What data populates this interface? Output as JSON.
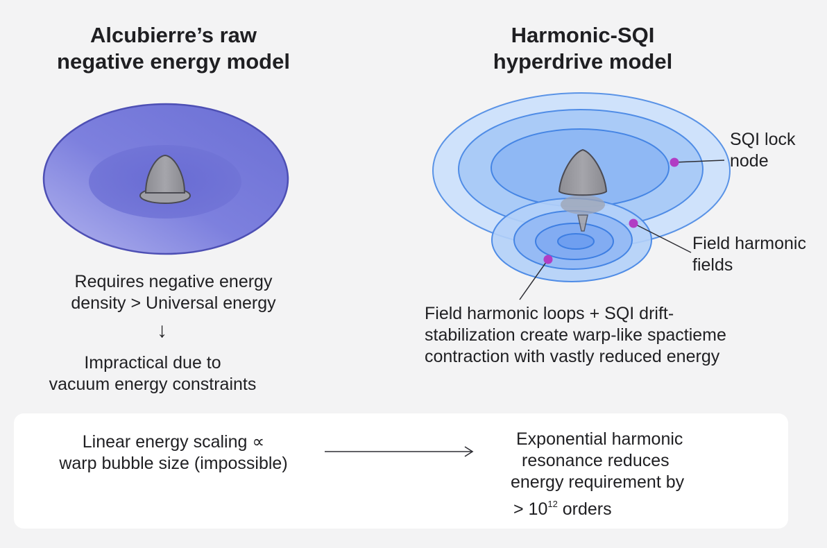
{
  "left": {
    "title_line1": "Alcubierre’s raw",
    "title_line2": "negative energy model",
    "desc_line1": "Requires negative energy",
    "desc_line2": "density > Universal energy",
    "arrow": "↓",
    "result_line1": "Impractical due to",
    "result_line2": "vacuum energy constraints"
  },
  "right": {
    "title_line1": "Harmonic-SQI",
    "title_line2": "hyperdrive model",
    "label_sqi_line1": "SQI lock",
    "label_sqi_line2": "node",
    "label_field_line1": "Field harmonic",
    "label_field_line2": "fields",
    "desc_line1": "Field harmonic loops + SQI drift-",
    "desc_line2": "stabilization create warp-like spactieme",
    "desc_line3": "contraction with vastly reduced energy"
  },
  "comparison": {
    "left_line1": "Linear energy scaling ∝",
    "left_line2": "warp bubble size (impossible)",
    "right_line1": "Exponential harmonic",
    "right_line2": "resonance reduces",
    "right_line3": "energy requirement by",
    "right_line4_prefix": "> 10",
    "right_line4_exp": "12",
    "right_line4_suffix": " orders"
  },
  "colors": {
    "left_field": "#7b7fdc",
    "right_field": "#9fc4f4",
    "node": "#b13dc4",
    "ship": "#9a9aa0"
  }
}
